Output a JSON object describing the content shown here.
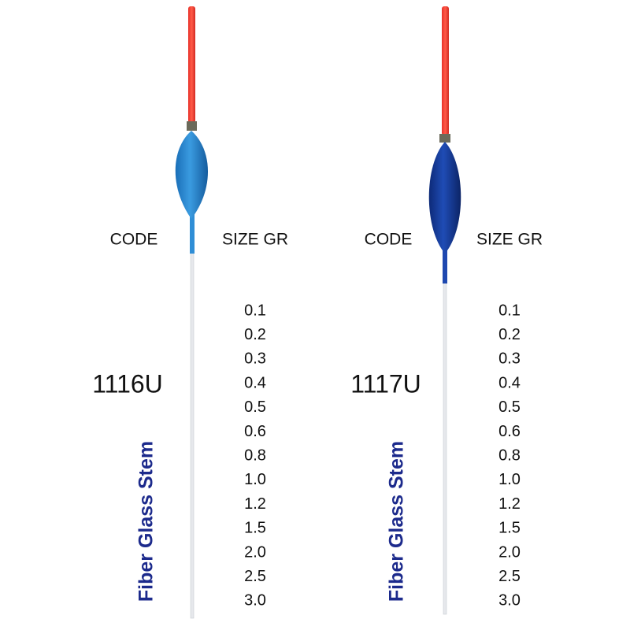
{
  "products": [
    {
      "code_header": "CODE",
      "size_header": "SIZE GR",
      "code": "1116U",
      "stem_label": "Fiber Glass Stem",
      "sizes": [
        "0.1",
        "0.2",
        "0.3",
        "0.4",
        "0.5",
        "0.6",
        "0.8",
        "1.0",
        "1.2",
        "1.5",
        "2.0",
        "2.5",
        "3.0"
      ]
    },
    {
      "code_header": "CODE",
      "size_header": "SIZE GR",
      "code": "1117U",
      "stem_label": "Fiber Glass Stem",
      "sizes": [
        "0.1",
        "0.2",
        "0.3",
        "0.4",
        "0.5",
        "0.6",
        "0.8",
        "1.0",
        "1.2",
        "1.5",
        "2.0",
        "2.5",
        "3.0"
      ]
    }
  ]
}
